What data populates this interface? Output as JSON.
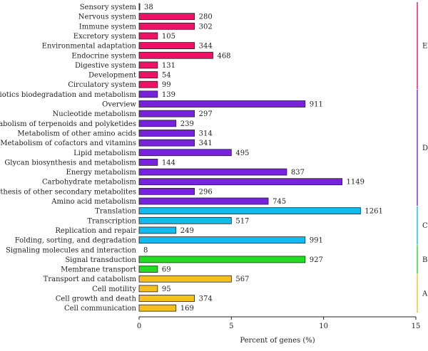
{
  "chart_data": {
    "type": "bar",
    "orientation": "horizontal",
    "xlabel": "Percent of genes (%)",
    "xlim": [
      0,
      15
    ],
    "xticks": [
      "0",
      "5",
      "10",
      "15"
    ],
    "grid": false,
    "legend": "none",
    "groups": [
      {
        "label": "E",
        "color": "#ee1166"
      },
      {
        "label": "D",
        "color": "#7722dd"
      },
      {
        "label": "C",
        "color": "#11bbee"
      },
      {
        "label": "B",
        "color": "#22dd22"
      },
      {
        "label": "A",
        "color": "#f5c01e"
      }
    ],
    "bars": [
      {
        "category": "Sensory system",
        "percent": 0.04,
        "count": "38",
        "group": 0
      },
      {
        "category": "Nervous system",
        "percent": 3.0,
        "count": "280",
        "group": 0
      },
      {
        "category": "Immune system",
        "percent": 3.0,
        "count": "302",
        "group": 0
      },
      {
        "category": "Excretory system",
        "percent": 1.0,
        "count": "105",
        "group": 0
      },
      {
        "category": "Environmental adaptation",
        "percent": 3.0,
        "count": "344",
        "group": 0
      },
      {
        "category": "Endocrine system",
        "percent": 4.0,
        "count": "468",
        "group": 0
      },
      {
        "category": "Digestive system",
        "percent": 1.0,
        "count": "131",
        "group": 0
      },
      {
        "category": "Development",
        "percent": 1.0,
        "count": "54",
        "group": 0
      },
      {
        "category": "Circulatory system",
        "percent": 1.0,
        "count": "99",
        "group": 0
      },
      {
        "category": "Xenobiotics biodegradation and metabolism",
        "percent": 1.0,
        "count": "139",
        "group": 1
      },
      {
        "category": "Overview",
        "percent": 9.0,
        "count": "911",
        "group": 1
      },
      {
        "category": "Nucleotide metabolism",
        "percent": 3.0,
        "count": "297",
        "group": 1
      },
      {
        "category": "Metabolism of terpenoids and polyketides",
        "percent": 2.0,
        "count": "239",
        "group": 1
      },
      {
        "category": "Metabolism of other amino acids",
        "percent": 3.0,
        "count": "314",
        "group": 1
      },
      {
        "category": "Metabolism of cofactors and vitamins",
        "percent": 3.0,
        "count": "341",
        "group": 1
      },
      {
        "category": "Lipid metabolism",
        "percent": 5.0,
        "count": "495",
        "group": 1
      },
      {
        "category": "Glycan biosynthesis and metabolism",
        "percent": 1.0,
        "count": "144",
        "group": 1
      },
      {
        "category": "Energy metabolism",
        "percent": 8.0,
        "count": "837",
        "group": 1
      },
      {
        "category": "Carbohydrate metabolism",
        "percent": 11.0,
        "count": "1149",
        "group": 1
      },
      {
        "category": "Biosynthesis of other secondary metabolites",
        "percent": 3.0,
        "count": "296",
        "group": 1
      },
      {
        "category": "Amino acid metabolism",
        "percent": 7.0,
        "count": "745",
        "group": 1
      },
      {
        "category": "Translation",
        "percent": 12.0,
        "count": "1261",
        "group": 2
      },
      {
        "category": "Transcription",
        "percent": 5.0,
        "count": "517",
        "group": 2
      },
      {
        "category": "Replication and repair",
        "percent": 2.0,
        "count": "249",
        "group": 2
      },
      {
        "category": "Folding, sorting, and degradation",
        "percent": 9.0,
        "count": "991",
        "group": 2
      },
      {
        "category": "Signaling molecules and interaction",
        "percent": 0.0,
        "count": "8",
        "group": 3
      },
      {
        "category": "Signal transduction",
        "percent": 9.0,
        "count": "927",
        "group": 3
      },
      {
        "category": "Membrane transport",
        "percent": 1.0,
        "count": "69",
        "group": 3
      },
      {
        "category": "Transport and catabolism",
        "percent": 5.0,
        "count": "567",
        "group": 4
      },
      {
        "category": "Cell motility",
        "percent": 1.0,
        "count": "95",
        "group": 4
      },
      {
        "category": "Cell growth and death",
        "percent": 3.0,
        "count": "374",
        "group": 4
      },
      {
        "category": "Cell communication",
        "percent": 2.0,
        "count": "169",
        "group": 4
      }
    ]
  }
}
